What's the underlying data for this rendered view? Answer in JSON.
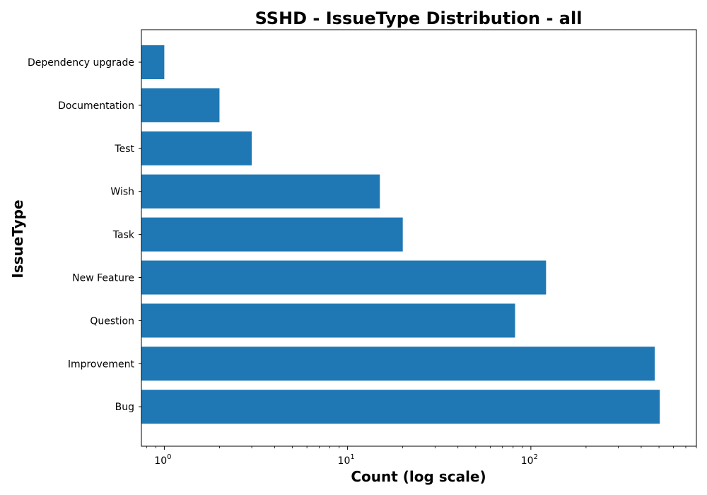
{
  "chart_data": {
    "type": "bar",
    "orientation": "horizontal",
    "title": "SSHD - IssueType Distribution - all",
    "xlabel": "Count (log scale)",
    "ylabel": "IssueType",
    "x_scale": "log",
    "xlim": [
      0.75,
      800
    ],
    "major_ticks": [
      {
        "value": 1,
        "base": "10",
        "exp": "0"
      },
      {
        "value": 10,
        "base": "10",
        "exp": "1"
      },
      {
        "value": 100,
        "base": "10",
        "exp": "2"
      }
    ],
    "categories": [
      "Dependency upgrade",
      "Documentation",
      "Test",
      "Wish",
      "Task",
      "New Feature",
      "Question",
      "Improvement",
      "Bug"
    ],
    "values": [
      1,
      2,
      3,
      15,
      20,
      121,
      82,
      474,
      505
    ],
    "bar_color": "#1f77b4",
    "grid": false
  }
}
